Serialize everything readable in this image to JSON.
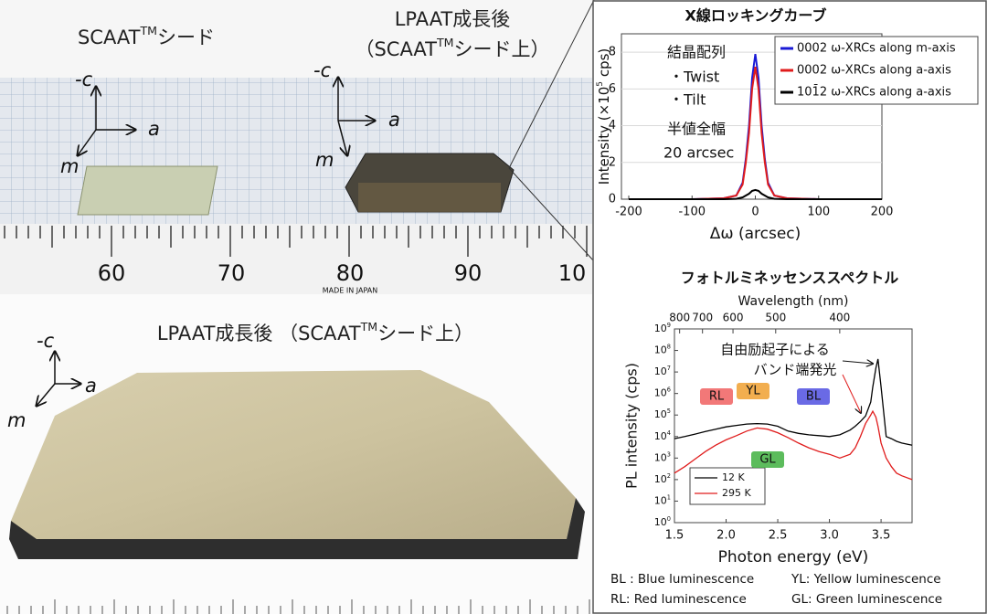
{
  "photo_top": {
    "seed_label": [
      "SCAAT",
      "TM",
      "シード"
    ],
    "grown_label_1": "LPAAT成長後",
    "grown_label_2": [
      "（SCAAT",
      "TM",
      "シード上）"
    ],
    "axes_left": [
      "-c",
      "a",
      "m"
    ],
    "axes_right": [
      "-c",
      "a",
      "m"
    ],
    "ruler_labels": [
      "60",
      "70",
      "80",
      "90",
      "10"
    ],
    "ruler_maker": "MADE IN JAPAN"
  },
  "photo_bottom": {
    "label": [
      "LPAAT成長後 （SCAAT",
      "TM",
      "シード上）"
    ],
    "axes": [
      "-c",
      "a",
      "m"
    ]
  },
  "chart_data": [
    {
      "type": "line",
      "title": "X線ロッキングカーブ",
      "x_label": "Δω (arcsec)",
      "y_label": [
        "Intensity (×10",
        "5",
        " cps)"
      ],
      "annotations": [
        "結晶配列",
        "・Twist",
        "・Tilt",
        "半値全幅",
        "20 arcsec"
      ],
      "x": [
        -200,
        -100,
        -50,
        -30,
        -20,
        -15,
        -10,
        -5,
        0,
        5,
        10,
        15,
        20,
        30,
        50,
        100,
        200
      ],
      "xlim": [
        -200,
        200
      ],
      "xticks": [
        -200,
        -100,
        0,
        100,
        200
      ],
      "ylim": [
        0,
        9
      ],
      "yticks": [
        0,
        2,
        4,
        6,
        8
      ],
      "grid": true,
      "legend": "top-right",
      "series": [
        {
          "name": "0002 ω-XRCs along m-axis",
          "color": "#1a1ad6",
          "values": [
            0,
            0,
            0.05,
            0.2,
            0.9,
            2.2,
            4.0,
            6.6,
            7.9,
            6.6,
            4.0,
            2.2,
            0.9,
            0.2,
            0.05,
            0,
            0
          ]
        },
        {
          "name": "0002 ω-XRCs along a-axis",
          "color": "#e01c1c",
          "values": [
            0,
            0,
            0.05,
            0.2,
            0.8,
            2.0,
            3.6,
            6.0,
            7.2,
            6.0,
            3.6,
            2.0,
            0.8,
            0.2,
            0.05,
            0,
            0
          ]
        },
        {
          "name": "101̄2 ω-XRCs along a-axis",
          "color": "#000000",
          "values": [
            0,
            0,
            0,
            0.02,
            0.1,
            0.2,
            0.3,
            0.45,
            0.5,
            0.45,
            0.3,
            0.2,
            0.1,
            0.02,
            0,
            0,
            0
          ]
        }
      ]
    },
    {
      "type": "line",
      "title": "フォトルミネッセンススペクトル",
      "x_label": "Photon energy (eV)",
      "y_label": "PL intensity (cps)",
      "top_axis": {
        "label": "Wavelength (nm)",
        "ticks": [
          800,
          700,
          600,
          500,
          400
        ]
      },
      "annotations": [
        "自由励起子による",
        "バンド端発光"
      ],
      "bands": [
        "RL",
        "YL",
        "BL",
        "GL"
      ],
      "log_y": true,
      "legend": "bottom-left",
      "x": [
        1.5,
        1.6,
        1.7,
        1.8,
        1.9,
        2.0,
        2.1,
        2.2,
        2.3,
        2.4,
        2.5,
        2.6,
        2.7,
        2.8,
        2.9,
        3.0,
        3.1,
        3.2,
        3.25,
        3.3,
        3.35,
        3.4,
        3.42,
        3.45,
        3.47,
        3.5,
        3.55,
        3.6,
        3.65,
        3.7,
        3.8
      ],
      "xlim": [
        1.5,
        3.8
      ],
      "xticks": [
        1.5,
        {
          "value": 2,
          "label": "2.0"
        },
        2.5,
        {
          "value": 3,
          "label": "3.0"
        },
        3.5
      ],
      "ylim": [
        1,
        1000000000
      ],
      "yticks": [
        {
          "value": 1,
          "label": "10",
          "sup": "0"
        },
        {
          "value": 10,
          "label": "10",
          "sup": "1"
        },
        {
          "value": 100,
          "label": "10",
          "sup": "2"
        },
        {
          "value": 1000,
          "label": "10",
          "sup": "3"
        },
        {
          "value": 10000,
          "label": "10",
          "sup": "4"
        },
        {
          "value": 100000,
          "label": "10",
          "sup": "5"
        },
        {
          "value": 1000000,
          "label": "10",
          "sup": "6"
        },
        {
          "value": 10000000,
          "label": "10",
          "sup": "7"
        },
        {
          "value": 100000000,
          "label": "10",
          "sup": "8"
        },
        {
          "value": 1000000000,
          "label": "10",
          "sup": "9"
        }
      ],
      "series": [
        {
          "name": "12 K",
          "color": "#000000",
          "values": [
            8000,
            10000,
            13000,
            17000,
            22000,
            28000,
            33000,
            38000,
            40000,
            38000,
            30000,
            18000,
            14000,
            12000,
            11000,
            10000,
            12000,
            20000,
            30000,
            50000,
            90000,
            400000,
            2000000,
            15000000,
            40000000,
            2000000,
            10000,
            8000,
            6000,
            5000,
            4000
          ]
        },
        {
          "name": "295 K",
          "color": "#e01c1c",
          "values": [
            200,
            400,
            900,
            2000,
            4000,
            7000,
            11000,
            18000,
            25000,
            22000,
            15000,
            9000,
            5000,
            3000,
            2000,
            1500,
            1000,
            1500,
            3000,
            10000,
            40000,
            100000,
            150000,
            80000,
            30000,
            5000,
            1000,
            400,
            200,
            150,
            100
          ]
        }
      ]
    }
  ],
  "footnotes": [
    "BL : Blue luminescence",
    "YL: Yellow luminescence",
    "RL: Red luminescence",
    "GL: Green luminescence"
  ]
}
